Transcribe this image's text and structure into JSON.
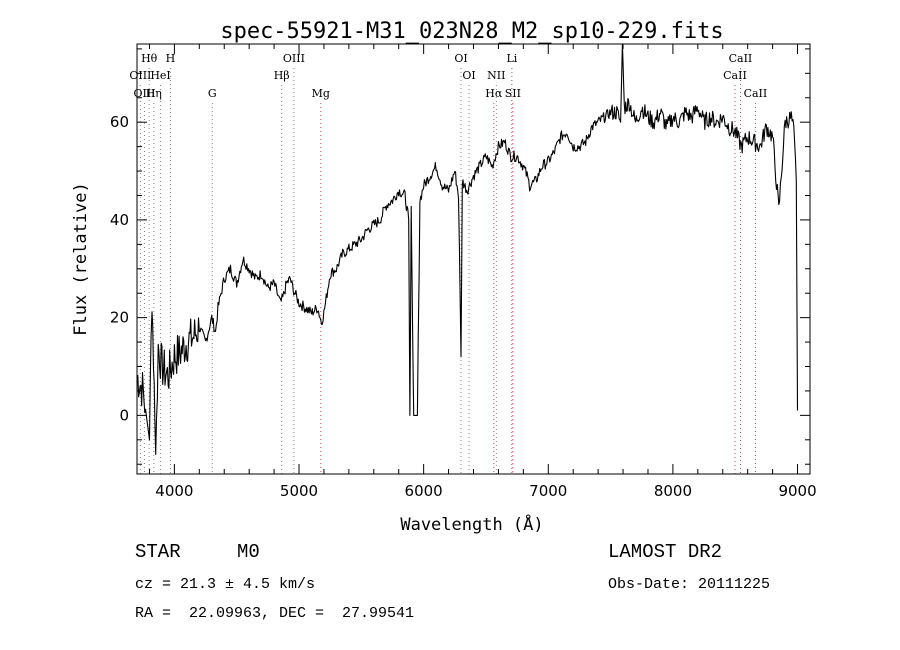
{
  "chart_data": {
    "type": "line",
    "title": "spec-55921-M31_023N28_M2_sp10-229.fits",
    "xlabel": "Wavelength (Å)",
    "ylabel": "Flux (relative)",
    "xlim": [
      3700,
      9100
    ],
    "ylim": [
      -12,
      76
    ],
    "xticks": [
      4000,
      5000,
      6000,
      7000,
      8000,
      9000
    ],
    "yticks": [
      0,
      20,
      40,
      60
    ],
    "xtick_labels": [
      "4000",
      "5000",
      "6000",
      "7000",
      "8000",
      "9000"
    ],
    "ytick_labels": [
      "0",
      "20",
      "40",
      "60"
    ],
    "grid": false,
    "series": [
      {
        "x": [
          3700,
          3750,
          3800,
          3820,
          3850,
          3870,
          3900,
          3950,
          4000,
          4050,
          4100,
          4150,
          4200,
          4250,
          4300,
          4330,
          4350,
          4400,
          4450,
          4500,
          4550,
          4600,
          4650,
          4700,
          4750,
          4800,
          4850,
          4870,
          4900,
          4930,
          4950,
          5000,
          5050,
          5100,
          5150,
          5180,
          5200,
          5250,
          5300,
          5350,
          5400,
          5450,
          5500,
          5550,
          5600,
          5650,
          5700,
          5750,
          5800,
          5850,
          5880,
          5890,
          5900,
          5920,
          5950,
          5970,
          6000,
          6050,
          6100,
          6150,
          6200,
          6250,
          6280,
          6300,
          6310,
          6350,
          6400,
          6450,
          6500,
          6550,
          6600,
          6650,
          6700,
          6750,
          6800,
          6830,
          6850,
          6900,
          6950,
          7000,
          7050,
          7100,
          7150,
          7200,
          7250,
          7300,
          7350,
          7400,
          7450,
          7500,
          7550,
          7580,
          7595,
          7610,
          7650,
          7700,
          7750,
          7800,
          7850,
          7900,
          7950,
          8000,
          8050,
          8100,
          8150,
          8200,
          8250,
          8300,
          8350,
          8400,
          8450,
          8500,
          8550,
          8600,
          8650,
          8700,
          8750,
          8800,
          8850,
          8900,
          8950,
          8970,
          8990,
          9000
        ],
        "y": [
          8,
          5,
          -5,
          25,
          -8,
          14,
          10,
          8,
          12,
          13,
          15,
          16,
          18,
          15,
          20,
          17,
          22,
          28,
          30,
          27,
          32,
          30,
          28,
          29,
          26,
          27,
          23,
          24,
          27,
          28,
          26,
          23,
          22,
          21,
          22,
          19,
          21,
          29,
          30,
          33,
          34,
          35,
          36,
          38,
          39,
          40,
          43,
          44,
          46,
          45,
          40,
          0,
          42,
          0,
          0,
          44,
          47,
          49,
          51,
          47,
          46,
          50,
          45,
          12,
          48,
          46,
          49,
          51,
          53,
          51,
          55,
          56,
          53,
          53,
          51,
          49,
          47,
          48,
          51,
          52,
          54,
          57,
          58,
          55,
          55,
          56,
          59,
          60,
          61,
          62,
          62,
          60,
          76,
          63,
          64,
          60,
          63,
          61,
          60,
          62,
          59,
          61,
          60,
          62,
          61,
          63,
          60,
          61,
          60,
          61,
          59,
          58,
          55,
          57,
          56,
          55,
          59,
          57,
          42,
          60,
          61,
          58,
          48,
          1
        ]
      }
    ],
    "line_markers": [
      {
        "label": "Hθ",
        "x": 3798,
        "row": 1,
        "color": "#888888"
      },
      {
        "label": "H",
        "x": 3968,
        "row": 1,
        "color": "#888888"
      },
      {
        "label": "OIII",
        "x": 3727,
        "row": 2,
        "color": "#888888"
      },
      {
        "label": "HeI",
        "x": 3889,
        "row": 2,
        "color": "#888888"
      },
      {
        "label": "OIII",
        "x": 3760,
        "row": 3,
        "color": "#888888"
      },
      {
        "label": "Hη",
        "x": 3835,
        "row": 3,
        "color": "#888888"
      },
      {
        "label": "G",
        "x": 4304,
        "row": 3,
        "color": "#888888"
      },
      {
        "label": "OIII",
        "x": 4959,
        "row": 1,
        "color": "#888888"
      },
      {
        "label": "Hβ",
        "x": 4861,
        "row": 2,
        "color": "#888888"
      },
      {
        "label": "Mg",
        "x": 5175,
        "row": 3,
        "color": "#cc4444"
      },
      {
        "label": "OI",
        "x": 6300,
        "row": 1,
        "color": "#888888"
      },
      {
        "label": "OI",
        "x": 6364,
        "row": 2,
        "color": "#888888"
      },
      {
        "label": "NII",
        "x": 6583,
        "row": 2,
        "color": "#888888"
      },
      {
        "label": "Hα",
        "x": 6563,
        "row": 3,
        "color": "#cc4444"
      },
      {
        "label": "Li",
        "x": 6708,
        "row": 1,
        "color": "#cc4444"
      },
      {
        "label": "SII",
        "x": 6716,
        "row": 3,
        "color": "#cc4444"
      },
      {
        "label": "CaII",
        "x": 8542,
        "row": 1,
        "color": "#cc4444"
      },
      {
        "label": "CaII",
        "x": 8498,
        "row": 2,
        "color": "#cc4444"
      },
      {
        "label": "CaII",
        "x": 8662,
        "row": 3,
        "color": "#cc4444"
      }
    ]
  },
  "info": {
    "class_label": "STAR",
    "subclass": "M0",
    "survey": "LAMOST DR2",
    "cz": "cz = 21.3 ± 4.5 km/s",
    "obs_date": "Obs-Date: 20111225",
    "coords": "RA =  22.09963, DEC =  27.99541"
  }
}
